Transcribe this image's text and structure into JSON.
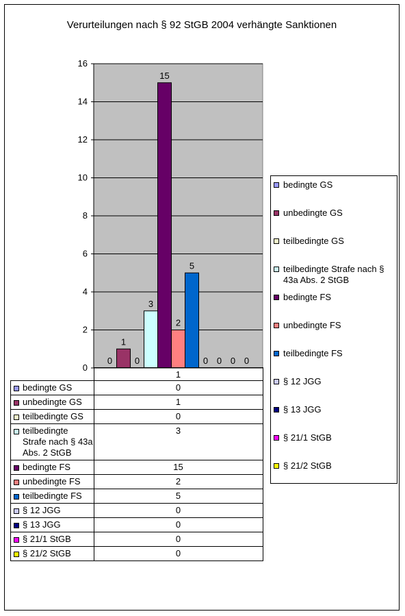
{
  "chart_data": {
    "type": "bar",
    "title": "Verurteilungen nach § 92 StGB 2004 verhängte Sanktionen",
    "categories": [
      "1"
    ],
    "ylim": [
      0,
      16
    ],
    "yticks": [
      0,
      2,
      4,
      6,
      8,
      10,
      12,
      14,
      16
    ],
    "grid": true,
    "legend": "right",
    "plot_background": "#C0C0C0",
    "series": [
      {
        "name": "bedingte GS",
        "values": [
          0
        ],
        "color": "#9999FF"
      },
      {
        "name": "unbedingte GS",
        "values": [
          1
        ],
        "color": "#993366"
      },
      {
        "name": "teilbedingte GS",
        "values": [
          0
        ],
        "color": "#FFFFCC"
      },
      {
        "name": "teilbedingte Strafe nach § 43a Abs. 2 StGB",
        "values": [
          3
        ],
        "color": "#CCFFFF"
      },
      {
        "name": "bedingte FS",
        "values": [
          15
        ],
        "color": "#660066"
      },
      {
        "name": "unbedingte FS",
        "values": [
          2
        ],
        "color": "#FF8080"
      },
      {
        "name": "teilbedingte FS",
        "values": [
          5
        ],
        "color": "#0066CC"
      },
      {
        "name": "§ 12 JGG",
        "values": [
          0
        ],
        "color": "#CCCCFF"
      },
      {
        "name": "§ 13 JGG",
        "values": [
          0
        ],
        "color": "#000080"
      },
      {
        "name": "§ 21/1 StGB",
        "values": [
          0
        ],
        "color": "#FF00FF"
      },
      {
        "name": "§ 21/2 StGB",
        "values": [
          0
        ],
        "color": "#FFFF00"
      }
    ]
  },
  "table": {
    "header": "1",
    "rows": [
      {
        "label": "bedingte GS",
        "value": "0"
      },
      {
        "label": "unbedingte GS",
        "value": "1"
      },
      {
        "label": "teilbedingte GS",
        "value": "0"
      },
      {
        "label": "teilbedingte Strafe nach § 43a Abs. 2 StGB",
        "value": "3"
      },
      {
        "label": "bedingte FS",
        "value": "15"
      },
      {
        "label": "unbedingte FS",
        "value": "2"
      },
      {
        "label": "teilbedingte FS",
        "value": "5"
      },
      {
        "label": "§ 12 JGG",
        "value": "0"
      },
      {
        "label": "§ 13 JGG",
        "value": "0"
      },
      {
        "label": "§ 21/1 StGB",
        "value": "0"
      },
      {
        "label": "§ 21/2 StGB",
        "value": "0"
      }
    ]
  }
}
